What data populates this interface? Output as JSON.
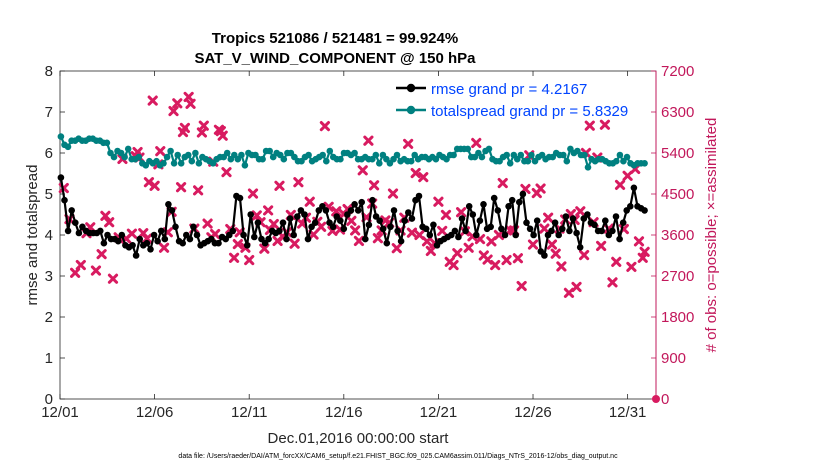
{
  "chart_data": {
    "type": "line",
    "title": "Tropics 521086 / 521481 = 99.924%",
    "subtitle": "SAT_V_WIND_COMPONENT @ 150 hPa",
    "xlabel": "Dec.01,2016 00:00:00 start",
    "ylabel": "rmse and totalspread",
    "ylabel_right": "# of obs: o=possible; ×=assimilated",
    "x_ticks": [
      "12/01",
      "12/06",
      "12/11",
      "12/16",
      "12/21",
      "12/26",
      "12/31"
    ],
    "x_tick_days": [
      0,
      5,
      10,
      15,
      20,
      25,
      30
    ],
    "xlim_days": [
      0,
      31.5
    ],
    "ylim": [
      0,
      8
    ],
    "y_ticks": [
      "0",
      "1",
      "2",
      "3",
      "4",
      "5",
      "6",
      "7",
      "8"
    ],
    "ylim_right": [
      0,
      7200
    ],
    "y_ticks_right": [
      "0",
      "900",
      "1800",
      "2700",
      "3600",
      "4500",
      "5400",
      "6300",
      "7200"
    ],
    "legend": {
      "position": "top-right",
      "entries": [
        "rmse grand pr = 4.2167",
        "totalspread grand pr = 5.8329"
      ]
    },
    "colors": {
      "rmse": "#000000",
      "totalspread": "#008080",
      "obs": "#d81b60",
      "legend_text": "#0044ff",
      "right_axis": "#c2185b"
    },
    "footer": "data file: /Users/raeder/DAI/ATM_forcXX/CAM6_setup/f.e21.FHIST_BGC.f09_025.CAM6assim.011/Diags_NTrS_2016-12/obs_diag_output.nc",
    "series": [
      {
        "name": "rmse",
        "values": [
          5.4,
          4.85,
          4.1,
          4.6,
          4.3,
          4.05,
          4.2,
          4.1,
          4.05,
          4.05,
          4.05,
          4.1,
          3.8,
          4.0,
          3.9,
          3.9,
          3.85,
          4.0,
          3.75,
          3.7,
          3.75,
          3.5,
          3.9,
          3.75,
          3.8,
          3.65,
          4.0,
          3.85,
          4.1,
          3.9,
          4.75,
          4.6,
          4.2,
          3.85,
          3.8,
          4.0,
          3.9,
          4.2,
          4.0,
          3.75,
          3.8,
          3.85,
          3.9,
          3.8,
          3.8,
          3.95,
          3.9,
          4.0,
          4.1,
          4.95,
          4.9,
          4.0,
          3.75,
          4.5,
          3.95,
          4.3,
          3.9,
          3.8,
          3.9,
          4.1,
          4.05,
          4.1,
          4.3,
          3.9,
          4.4,
          4.0,
          4.45,
          4.6,
          4.5,
          3.9,
          4.2,
          4.3,
          4.6,
          4.7,
          4.6,
          4.3,
          4.2,
          4.45,
          4.35,
          4.15,
          4.5,
          4.6,
          4.75,
          4.6,
          4.8,
          3.9,
          4.25,
          4.85,
          4.45,
          4.35,
          4.15,
          3.8,
          4.2,
          4.6,
          4.1,
          3.85,
          4.35,
          4.55,
          4.4,
          4.85,
          4.95,
          4.2,
          4.15,
          4.0,
          4.25,
          3.75,
          3.85,
          3.9,
          3.95,
          4.0,
          4.1,
          3.95,
          4.4,
          4.1,
          4.7,
          4.5,
          4.0,
          4.35,
          4.75,
          4.15,
          4.2,
          4.9,
          4.6,
          4.15,
          4.0,
          4.7,
          4.85,
          4.0,
          4.8,
          5.0,
          4.3,
          4.15,
          4.0,
          4.35,
          3.6,
          3.5,
          4.0,
          4.1,
          4.3,
          4.0,
          4.15,
          4.45,
          4.1,
          4.4,
          4.05,
          3.7,
          4.4,
          4.5,
          4.3,
          4.25,
          4.1,
          4.1,
          4.35,
          4.0,
          4.1,
          4.45,
          3.9,
          4.3,
          4.6,
          4.7,
          5.15,
          4.7,
          4.65,
          4.6
        ]
      },
      {
        "name": "totalspread",
        "values": [
          6.4,
          6.2,
          6.15,
          6.3,
          6.3,
          6.35,
          6.3,
          6.3,
          6.35,
          6.35,
          6.3,
          6.3,
          6.25,
          6.25,
          6.0,
          5.9,
          6.05,
          6.0,
          5.9,
          6.1,
          5.85,
          5.85,
          5.9,
          5.75,
          5.7,
          5.8,
          5.75,
          5.8,
          5.7,
          5.75,
          5.9,
          6.05,
          5.75,
          5.95,
          5.75,
          5.9,
          5.95,
          5.8,
          6.0,
          5.75,
          5.9,
          5.85,
          5.8,
          5.75,
          5.85,
          5.9,
          5.9,
          6.0,
          5.85,
          5.95,
          5.85,
          5.95,
          5.7,
          6.0,
          5.95,
          5.95,
          5.85,
          5.85,
          6.05,
          6.05,
          5.9,
          6.0,
          5.95,
          5.85,
          6.0,
          6.0,
          5.9,
          5.8,
          5.8,
          5.9,
          5.95,
          5.8,
          5.85,
          5.9,
          5.95,
          5.8,
          6.05,
          5.9,
          5.85,
          5.85,
          6.0,
          6.0,
          5.95,
          6.0,
          5.85,
          5.85,
          5.9,
          5.85,
          5.85,
          5.95,
          5.75,
          5.95,
          5.85,
          5.75,
          5.85,
          5.95,
          5.8,
          5.85,
          5.8,
          5.8,
          5.95,
          5.85,
          5.9,
          5.9,
          5.85,
          5.9,
          5.85,
          5.95,
          5.9,
          5.85,
          5.95,
          5.95,
          6.1,
          6.1,
          6.1,
          6.1,
          5.9,
          5.9,
          6.0,
          5.9,
          6.05,
          6.1,
          5.85,
          5.8,
          5.8,
          5.9,
          5.95,
          5.75,
          5.95,
          5.85,
          5.95,
          5.8,
          5.8,
          5.95,
          5.8,
          5.9,
          5.95,
          5.85,
          5.9,
          5.9,
          6.0,
          5.95,
          5.95,
          5.8,
          6.1,
          6.0,
          6.05,
          5.95,
          5.95,
          5.65,
          5.85,
          5.8,
          5.85,
          5.85,
          5.8,
          5.75,
          5.75,
          5.8,
          5.95,
          5.8,
          5.9,
          5.75,
          5.7,
          5.75,
          5.75,
          5.75
        ]
      }
    ],
    "obs_assimilated_points": [
      [
        0.2,
        4630
      ],
      [
        0.5,
        3950
      ],
      [
        0.8,
        2770
      ],
      [
        1.1,
        2940
      ],
      [
        1.4,
        3640
      ],
      [
        1.6,
        3770
      ],
      [
        1.9,
        2820
      ],
      [
        2.2,
        3180
      ],
      [
        2.4,
        4020
      ],
      [
        2.6,
        3880
      ],
      [
        2.8,
        2640
      ],
      [
        3.1,
        3550
      ],
      [
        3.3,
        5270
      ],
      [
        3.5,
        3520
      ],
      [
        3.8,
        3630
      ],
      [
        4.0,
        5330
      ],
      [
        4.1,
        5420
      ],
      [
        4.2,
        5300
      ],
      [
        4.4,
        3640
      ],
      [
        4.6,
        3520
      ],
      [
        4.7,
        4760
      ],
      [
        4.9,
        6550
      ],
      [
        5.0,
        4680
      ],
      [
        5.2,
        5150
      ],
      [
        5.3,
        5440
      ],
      [
        5.5,
        3320
      ],
      [
        5.7,
        3660
      ],
      [
        5.9,
        4110
      ],
      [
        6.0,
        6320
      ],
      [
        6.2,
        6490
      ],
      [
        6.4,
        4650
      ],
      [
        6.5,
        5860
      ],
      [
        6.6,
        5950
      ],
      [
        6.8,
        6630
      ],
      [
        6.9,
        6480
      ],
      [
        7.1,
        3740
      ],
      [
        7.3,
        4580
      ],
      [
        7.5,
        5850
      ],
      [
        7.6,
        6000
      ],
      [
        7.8,
        3850
      ],
      [
        8.0,
        3550
      ],
      [
        8.1,
        5210
      ],
      [
        8.2,
        3620
      ],
      [
        8.4,
        5910
      ],
      [
        8.5,
        5880
      ],
      [
        8.6,
        5780
      ],
      [
        8.8,
        4980
      ],
      [
        9.0,
        3730
      ],
      [
        9.2,
        3100
      ],
      [
        9.4,
        3400
      ],
      [
        9.5,
        3660
      ],
      [
        9.8,
        3320
      ],
      [
        10.0,
        3050
      ],
      [
        10.2,
        4510
      ],
      [
        10.4,
        4030
      ],
      [
        10.6,
        3880
      ],
      [
        10.8,
        3300
      ],
      [
        11.0,
        4140
      ],
      [
        11.1,
        3710
      ],
      [
        11.3,
        3840
      ],
      [
        11.5,
        3470
      ],
      [
        11.6,
        4680
      ],
      [
        11.8,
        3560
      ],
      [
        12.0,
        3660
      ],
      [
        12.2,
        4040
      ],
      [
        12.4,
        3410
      ],
      [
        12.6,
        4760
      ],
      [
        12.8,
        3850
      ],
      [
        13.0,
        3980
      ],
      [
        13.2,
        4330
      ],
      [
        13.4,
        3610
      ],
      [
        13.6,
        3890
      ],
      [
        13.8,
        3780
      ],
      [
        14.0,
        5990
      ],
      [
        14.2,
        4220
      ],
      [
        14.4,
        3690
      ],
      [
        14.6,
        4120
      ],
      [
        14.8,
        3720
      ],
      [
        15.0,
        4060
      ],
      [
        15.2,
        4170
      ],
      [
        15.4,
        3910
      ],
      [
        15.6,
        3700
      ],
      [
        15.8,
        3470
      ],
      [
        16.0,
        5020
      ],
      [
        16.2,
        3990
      ],
      [
        16.3,
        5670
      ],
      [
        16.5,
        4290
      ],
      [
        16.6,
        4690
      ],
      [
        16.8,
        3530
      ],
      [
        17.0,
        3700
      ],
      [
        17.2,
        3920
      ],
      [
        17.4,
        3870
      ],
      [
        17.6,
        4510
      ],
      [
        17.8,
        3310
      ],
      [
        18.0,
        3700
      ],
      [
        18.2,
        3980
      ],
      [
        18.4,
        5600
      ],
      [
        18.6,
        3650
      ],
      [
        18.8,
        4960
      ],
      [
        19.0,
        3600
      ],
      [
        19.2,
        4870
      ],
      [
        19.4,
        3460
      ],
      [
        19.6,
        3250
      ],
      [
        19.8,
        3420
      ],
      [
        20.0,
        4330
      ],
      [
        20.2,
        3690
      ],
      [
        20.4,
        4040
      ],
      [
        20.6,
        3010
      ],
      [
        20.8,
        2940
      ],
      [
        21.0,
        3200
      ],
      [
        21.2,
        4100
      ],
      [
        21.4,
        3680
      ],
      [
        21.6,
        3320
      ],
      [
        21.8,
        3570
      ],
      [
        22.0,
        5620
      ],
      [
        22.2,
        3510
      ],
      [
        22.4,
        3150
      ],
      [
        22.6,
        3060
      ],
      [
        22.8,
        3460
      ],
      [
        23.0,
        2940
      ],
      [
        23.2,
        3600
      ],
      [
        23.4,
        4740
      ],
      [
        23.6,
        3050
      ],
      [
        23.8,
        3700
      ],
      [
        24.0,
        3700
      ],
      [
        24.2,
        3090
      ],
      [
        24.4,
        2480
      ],
      [
        24.6,
        4610
      ],
      [
        24.8,
        5350
      ],
      [
        25.0,
        3390
      ],
      [
        25.2,
        4520
      ],
      [
        25.4,
        4620
      ],
      [
        25.6,
        3740
      ],
      [
        25.8,
        3980
      ],
      [
        26.0,
        3390
      ],
      [
        26.2,
        3190
      ],
      [
        26.4,
        3740
      ],
      [
        26.5,
        2910
      ],
      [
        26.7,
        3940
      ],
      [
        26.9,
        2330
      ],
      [
        27.0,
        4060
      ],
      [
        27.2,
        3930
      ],
      [
        27.3,
        2460
      ],
      [
        27.5,
        4120
      ],
      [
        27.7,
        3160
      ],
      [
        27.8,
        5400
      ],
      [
        28.0,
        6000
      ],
      [
        28.2,
        3880
      ],
      [
        28.4,
        5300
      ],
      [
        28.6,
        3360
      ],
      [
        28.8,
        6020
      ],
      [
        29.0,
        3740
      ],
      [
        29.2,
        2560
      ],
      [
        29.4,
        3010
      ],
      [
        29.6,
        4700
      ],
      [
        29.8,
        3730
      ],
      [
        30.0,
        4900
      ],
      [
        30.2,
        2900
      ],
      [
        30.4,
        5050
      ],
      [
        30.6,
        3460
      ],
      [
        30.8,
        3100
      ],
      [
        30.9,
        3230
      ]
    ]
  }
}
